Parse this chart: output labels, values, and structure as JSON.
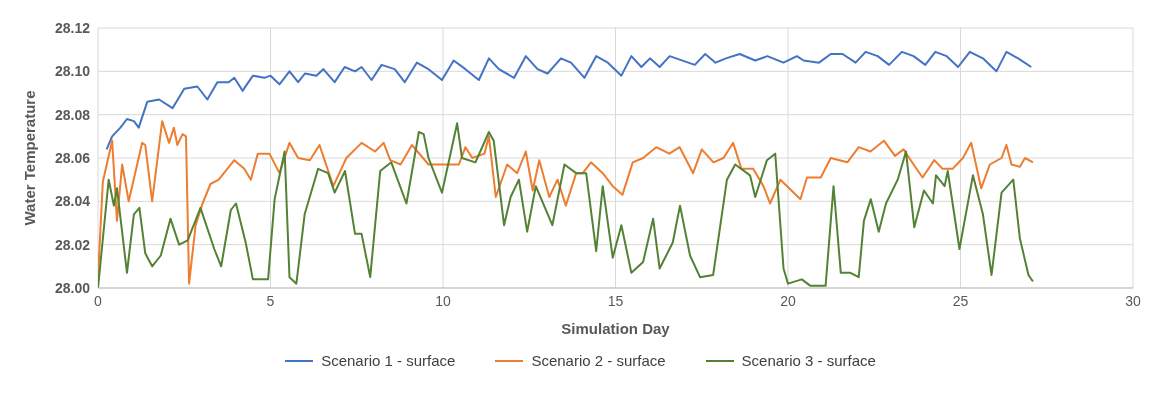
{
  "chart_data": {
    "type": "line",
    "xlabel": "Simulation Day",
    "ylabel": "Water Temperature",
    "xlim": [
      0,
      30
    ],
    "xticks": [
      0,
      5,
      10,
      15,
      20,
      25,
      30
    ],
    "ylim": [
      28,
      28.12
    ],
    "yticks": [
      {
        "value": 28,
        "label": "28.00"
      },
      {
        "value": 28.02,
        "label": "28.02"
      },
      {
        "value": 28.04,
        "label": "28.04"
      },
      {
        "value": 28.06,
        "label": "28.06"
      },
      {
        "value": 28.08,
        "label": "28.08"
      },
      {
        "value": 28.1,
        "label": "28.10"
      },
      {
        "value": 28.12,
        "label": "28.12"
      }
    ],
    "grid": true,
    "legend": "bottom",
    "marker": "none",
    "line_style": "solid",
    "series": [
      {
        "name": "Scenario 1 - surface",
        "color": "#4472c4",
        "x": [
          0.25,
          0.41,
          0.65,
          0.84,
          1.04,
          1.18,
          1.43,
          1.77,
          2.16,
          2.5,
          2.88,
          3.17,
          3.46,
          3.79,
          3.95,
          4.19,
          4.49,
          4.82,
          5,
          5.26,
          5.55,
          5.8,
          6,
          6.33,
          6.53,
          6.86,
          7.15,
          7.45,
          7.64,
          7.93,
          8.22,
          8.6,
          8.89,
          9.24,
          9.58,
          9.97,
          10.31,
          10.65,
          11.04,
          11.33,
          11.62,
          12.06,
          12.4,
          12.74,
          13.03,
          13.42,
          13.71,
          14.1,
          14.44,
          14.78,
          15.17,
          15.46,
          15.75,
          16,
          16.28,
          16.57,
          17.3,
          17.6,
          17.9,
          18.2,
          18.6,
          19.05,
          19.4,
          19.87,
          20.26,
          20.45,
          20.9,
          21.24,
          21.58,
          21.96,
          22.25,
          22.6,
          22.93,
          23.3,
          23.64,
          23.98,
          24.27,
          24.6,
          24.93,
          25.27,
          25.65,
          26.04,
          26.33,
          26.67,
          27.05
        ],
        "values": [
          28.064,
          28.07,
          28.074,
          28.078,
          28.077,
          28.074,
          28.086,
          28.087,
          28.083,
          28.092,
          28.093,
          28.087,
          28.095,
          28.095,
          28.097,
          28.091,
          28.098,
          28.097,
          28.098,
          28.094,
          28.1,
          28.095,
          28.099,
          28.098,
          28.101,
          28.095,
          28.102,
          28.1,
          28.102,
          28.096,
          28.103,
          28.101,
          28.095,
          28.104,
          28.101,
          28.096,
          28.105,
          28.101,
          28.096,
          28.106,
          28.101,
          28.097,
          28.107,
          28.101,
          28.099,
          28.106,
          28.104,
          28.097,
          28.107,
          28.104,
          28.098,
          28.107,
          28.102,
          28.106,
          28.102,
          28.107,
          28.103,
          28.108,
          28.104,
          28.106,
          28.108,
          28.105,
          28.107,
          28.104,
          28.107,
          28.105,
          28.104,
          28.108,
          28.108,
          28.104,
          28.109,
          28.107,
          28.103,
          28.109,
          28.107,
          28.103,
          28.109,
          28.107,
          28.102,
          28.109,
          28.106,
          28.1,
          28.109,
          28.106,
          28.102
        ]
      },
      {
        "name": "Scenario 2 - surface",
        "color": "#ed7d31",
        "x": [
          0,
          0.14,
          0.41,
          0.55,
          0.7,
          0.89,
          1.28,
          1.37,
          1.57,
          1.86,
          2.06,
          2.2,
          2.3,
          2.45,
          2.55,
          2.64,
          2.83,
          3.03,
          3.26,
          3.5,
          3.95,
          4.24,
          4.43,
          4.63,
          4.97,
          5.26,
          5.55,
          5.8,
          6.14,
          6.42,
          6.82,
          7.2,
          7.64,
          8.03,
          8.28,
          8.47,
          8.77,
          9.1,
          9.58,
          9.9,
          10.46,
          10.65,
          10.85,
          11.2,
          11.33,
          11.53,
          11.86,
          12.15,
          12.4,
          12.6,
          12.79,
          13.08,
          13.32,
          13.56,
          13.86,
          14.05,
          14.29,
          14.63,
          14.92,
          15.2,
          15.5,
          15.8,
          16.18,
          16.56,
          16.86,
          17.25,
          17.5,
          17.84,
          18.13,
          18.41,
          18.65,
          18.99,
          19.29,
          19.48,
          19.78,
          20.36,
          20.55,
          20.95,
          21.24,
          21.72,
          22.05,
          22.39,
          22.78,
          23.1,
          23.35,
          23.64,
          23.9,
          24.24,
          24.48,
          24.77,
          25.07,
          25.31,
          25.6,
          25.85,
          26.19,
          26.33,
          26.48,
          26.72,
          26.87,
          27.1
        ],
        "values": [
          28.005,
          28.049,
          28.068,
          28.031,
          28.057,
          28.04,
          28.067,
          28.066,
          28.04,
          28.077,
          28.067,
          28.074,
          28.066,
          28.071,
          28.07,
          28.002,
          28.029,
          28.039,
          28.048,
          28.05,
          28.059,
          28.055,
          28.05,
          28.062,
          28.062,
          28.053,
          28.067,
          28.06,
          28.059,
          28.066,
          28.047,
          28.06,
          28.067,
          28.063,
          28.067,
          28.059,
          28.057,
          28.066,
          28.057,
          28.057,
          28.057,
          28.065,
          28.06,
          28.062,
          28.07,
          28.042,
          28.057,
          28.053,
          28.063,
          28.045,
          28.059,
          28.042,
          28.05,
          28.038,
          28.053,
          28.053,
          28.058,
          28.053,
          28.047,
          28.043,
          28.058,
          28.06,
          28.065,
          28.062,
          28.065,
          28.053,
          28.064,
          28.058,
          28.06,
          28.067,
          28.055,
          28.055,
          28.047,
          28.039,
          28.05,
          28.041,
          28.051,
          28.051,
          28.06,
          28.058,
          28.065,
          28.063,
          28.068,
          28.061,
          28.064,
          28.057,
          28.051,
          28.059,
          28.055,
          28.055,
          28.06,
          28.067,
          28.046,
          28.057,
          28.06,
          28.066,
          28.057,
          28.056,
          28.06,
          28.058
        ]
      },
      {
        "name": "Scenario 3 - surface",
        "color": "#548235",
        "x": [
          0,
          0.31,
          0.46,
          0.55,
          0.84,
          1.04,
          1.2,
          1.37,
          1.57,
          1.82,
          2.1,
          2.35,
          2.6,
          2.97,
          3.37,
          3.57,
          3.85,
          4,
          4.28,
          4.49,
          4.93,
          5.12,
          5.41,
          5.55,
          5.75,
          5.99,
          6.38,
          6.67,
          6.86,
          7.16,
          7.45,
          7.64,
          7.89,
          8.18,
          8.5,
          8.94,
          9.3,
          9.44,
          9.58,
          9.97,
          10.41,
          10.55,
          10.94,
          11.33,
          11.47,
          11.77,
          11.96,
          12.2,
          12.44,
          12.69,
          13.17,
          13.52,
          13.86,
          14.15,
          14.44,
          14.63,
          14.92,
          15.17,
          15.46,
          15.8,
          16.09,
          16.28,
          16.66,
          16.87,
          17.16,
          17.45,
          17.83,
          18.23,
          18.47,
          18.9,
          19.05,
          19.39,
          19.63,
          19.87,
          20,
          20.4,
          20.65,
          21.09,
          21.32,
          21.53,
          21.81,
          22.05,
          22.2,
          22.4,
          22.63,
          22.84,
          23.18,
          23.42,
          23.66,
          23.94,
          24.2,
          24.29,
          24.54,
          24.63,
          24.97,
          25.36,
          25.65,
          25.9,
          26.19,
          26.53,
          26.72,
          26.97,
          27.1
        ],
        "values": [
          28,
          28.05,
          28.038,
          28.046,
          28.007,
          28.034,
          28.037,
          28.016,
          28.01,
          28.015,
          28.032,
          28.02,
          28.022,
          28.037,
          28.018,
          28.01,
          28.036,
          28.039,
          28.021,
          28.004,
          28.004,
          28.041,
          28.063,
          28.005,
          28.002,
          28.034,
          28.055,
          28.053,
          28.044,
          28.054,
          28.025,
          28.025,
          28.005,
          28.054,
          28.058,
          28.039,
          28.072,
          28.071,
          28.06,
          28.044,
          28.076,
          28.06,
          28.058,
          28.072,
          28.068,
          28.029,
          28.042,
          28.05,
          28.026,
          28.047,
          28.029,
          28.057,
          28.053,
          28.053,
          28.017,
          28.047,
          28.014,
          28.029,
          28.007,
          28.012,
          28.032,
          28.009,
          28.021,
          28.038,
          28.015,
          28.005,
          28.006,
          28.05,
          28.057,
          28.052,
          28.042,
          28.059,
          28.062,
          28.009,
          28.002,
          28.004,
          28.001,
          28.001,
          28.047,
          28.007,
          28.007,
          28.005,
          28.031,
          28.041,
          28.026,
          28.039,
          28.05,
          28.063,
          28.028,
          28.045,
          28.039,
          28.052,
          28.047,
          28.054,
          28.018,
          28.052,
          28.034,
          28.006,
          28.044,
          28.05,
          28.023,
          28.006,
          28.003
        ]
      }
    ]
  }
}
